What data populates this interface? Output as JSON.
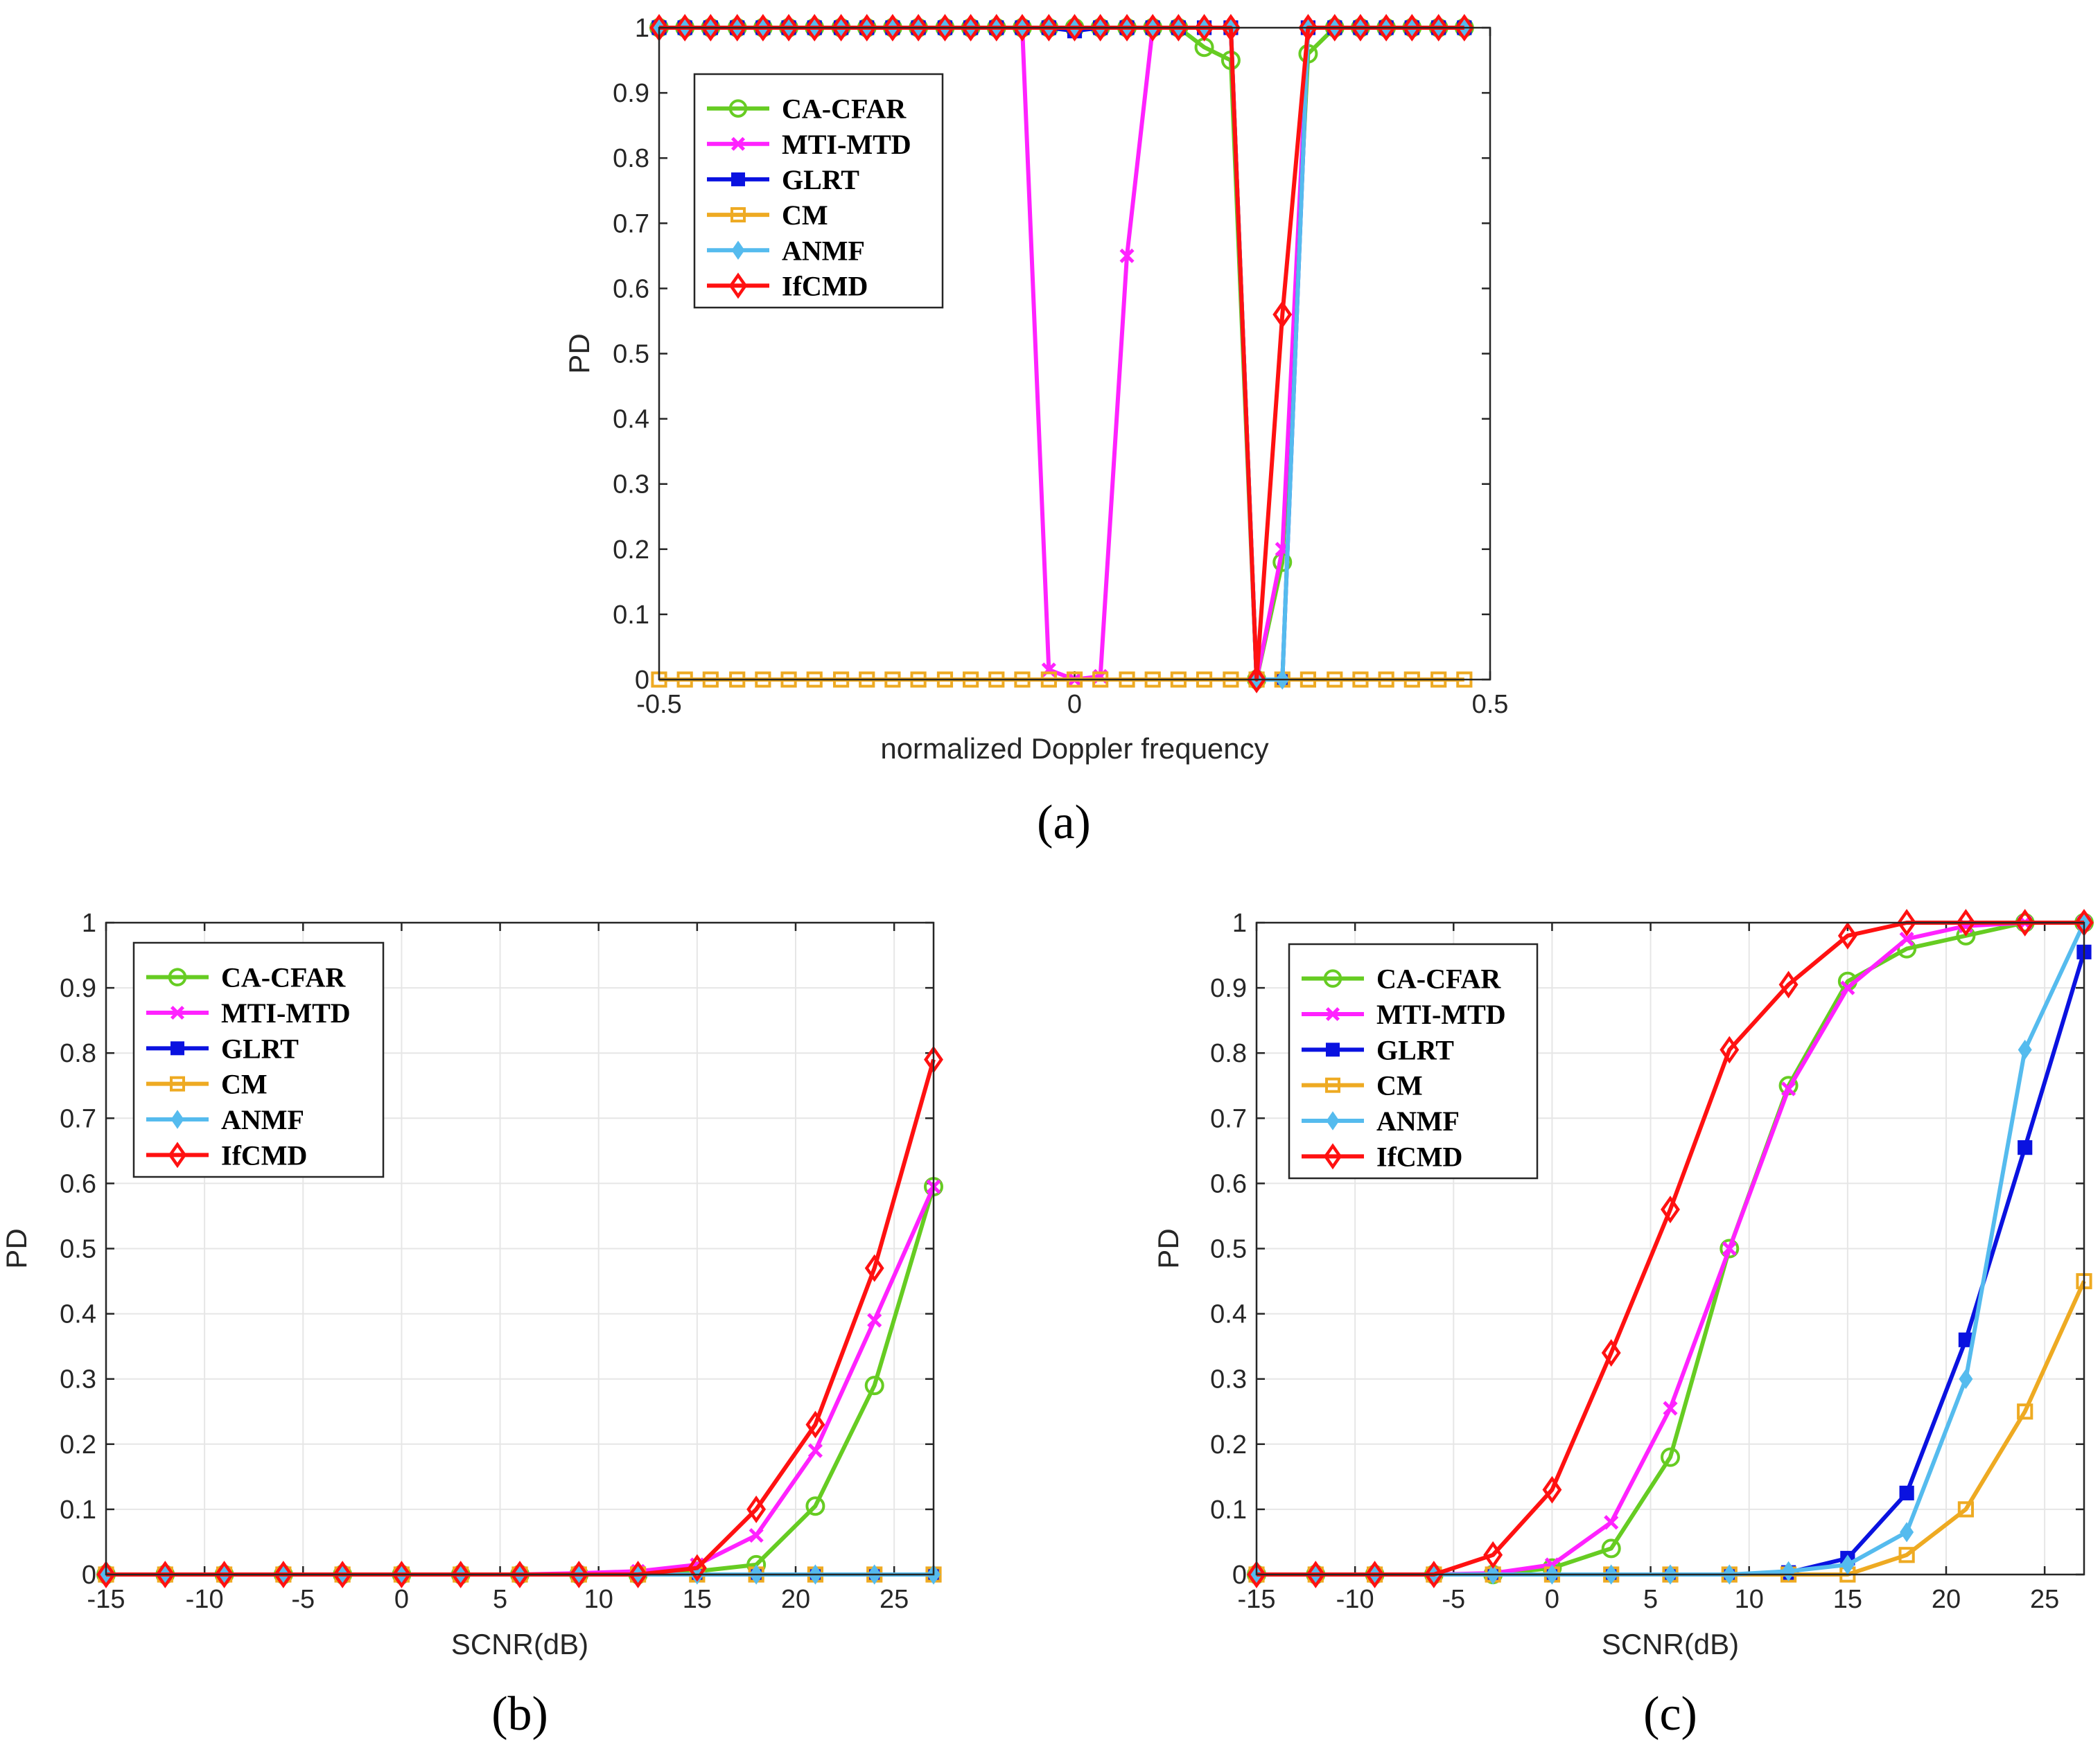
{
  "colors": {
    "CA-CFAR": "#66cc22",
    "MTI-MTD": "#ff22ff",
    "GLRT": "#0a12e0",
    "CM": "#eeaa22",
    "ANMF": "#55bbee",
    "IfCMD": "#ff1111"
  },
  "markers": {
    "CA-CFAR": "circle",
    "MTI-MTD": "x",
    "GLRT": "square",
    "CM": "square-open",
    "ANMF": "diamond-small",
    "IfCMD": "diamond"
  },
  "chart_data": [
    {
      "type": "line",
      "panel": "(a)",
      "caption": "(a)",
      "xlabel": "normalized Doppler frequency",
      "ylabel": "PD",
      "xlim": [
        -0.5,
        0.5
      ],
      "ylim": [
        0,
        1
      ],
      "xticks": [
        -0.5,
        0,
        0.5
      ],
      "xtick_labels": [
        "-0.5",
        "0",
        "0.5"
      ],
      "yticks": [
        0,
        0.1,
        0.2,
        0.3,
        0.4,
        0.5,
        0.6,
        0.7,
        0.8,
        0.9,
        1
      ],
      "ytick_labels": [
        "0",
        "0.1",
        "0.2",
        "0.3",
        "0.4",
        "0.5",
        "0.6",
        "0.7",
        "0.8",
        "0.9",
        "1"
      ],
      "grid": false,
      "legend_position": "top-left",
      "x": [
        -0.5,
        -0.469,
        -0.438,
        -0.406,
        -0.375,
        -0.344,
        -0.313,
        -0.281,
        -0.25,
        -0.219,
        -0.188,
        -0.156,
        -0.125,
        -0.094,
        -0.063,
        -0.031,
        0,
        0.031,
        0.063,
        0.094,
        0.125,
        0.156,
        0.188,
        0.219,
        0.25,
        0.281,
        0.313,
        0.344,
        0.375,
        0.406,
        0.438,
        0.469
      ],
      "series": [
        {
          "name": "CA-CFAR",
          "values": [
            1,
            1,
            1,
            1,
            1,
            1,
            1,
            1,
            1,
            1,
            1,
            1,
            1,
            1,
            1,
            1,
            1,
            1,
            1,
            1,
            1,
            0.97,
            0.95,
            0,
            0.18,
            0.96,
            1,
            1,
            1,
            1,
            1,
            1
          ]
        },
        {
          "name": "MTI-MTD",
          "values": [
            1,
            1,
            1,
            1,
            1,
            1,
            1,
            1,
            1,
            1,
            1,
            1,
            1,
            1,
            1,
            0.015,
            0,
            0.005,
            0.65,
            1,
            1,
            1,
            1,
            0,
            0.2,
            1,
            1,
            1,
            1,
            1,
            1,
            1
          ]
        },
        {
          "name": "GLRT",
          "values": [
            1,
            1,
            1,
            1,
            1,
            1,
            1,
            1,
            1,
            1,
            1,
            1,
            1,
            1,
            1,
            1,
            0.995,
            1,
            1,
            1,
            1,
            1,
            1,
            0,
            0,
            1,
            1,
            1,
            1,
            1,
            1,
            1
          ]
        },
        {
          "name": "CM",
          "values": [
            0,
            0,
            0,
            0,
            0,
            0,
            0,
            0,
            0,
            0,
            0,
            0,
            0,
            0,
            0,
            0,
            0,
            0,
            0,
            0,
            0,
            0,
            0,
            0,
            0,
            0,
            0,
            0,
            0,
            0,
            0,
            0
          ]
        },
        {
          "name": "ANMF",
          "values": [
            1,
            1,
            1,
            1,
            1,
            1,
            1,
            1,
            1,
            1,
            1,
            1,
            1,
            1,
            1,
            1,
            1,
            1,
            1,
            1,
            1,
            1,
            1,
            0,
            0,
            1,
            1,
            1,
            1,
            1,
            1,
            1
          ]
        },
        {
          "name": "IfCMD",
          "values": [
            1,
            1,
            1,
            1,
            1,
            1,
            1,
            1,
            1,
            1,
            1,
            1,
            1,
            1,
            1,
            1,
            1,
            1,
            1,
            1,
            1,
            1,
            1,
            0,
            0.56,
            1,
            1,
            1,
            1,
            1,
            1,
            1
          ]
        }
      ]
    },
    {
      "type": "line",
      "panel": "(b)",
      "caption": "(b)",
      "xlabel": "SCNR(dB)",
      "ylabel": "PD",
      "xlim": [
        -15,
        27
      ],
      "ylim": [
        0,
        1
      ],
      "xticks": [
        -15,
        -10,
        -5,
        0,
        5,
        10,
        15,
        20,
        25
      ],
      "xtick_labels": [
        "-15",
        "-10",
        "-5",
        "0",
        "5",
        "10",
        "15",
        "20",
        "25"
      ],
      "yticks": [
        0,
        0.1,
        0.2,
        0.3,
        0.4,
        0.5,
        0.6,
        0.7,
        0.8,
        0.9,
        1
      ],
      "ytick_labels": [
        "0",
        "0.1",
        "0.2",
        "0.3",
        "0.4",
        "0.5",
        "0.6",
        "0.7",
        "0.8",
        "0.9",
        "1"
      ],
      "grid": true,
      "legend_position": "top-left",
      "x": [
        -15,
        -12,
        -9,
        -6,
        -3,
        0,
        3,
        6,
        9,
        12,
        15,
        18,
        21,
        24,
        27
      ],
      "series": [
        {
          "name": "CA-CFAR",
          "values": [
            0,
            0,
            0,
            0,
            0,
            0,
            0,
            0,
            0,
            0,
            0.005,
            0.015,
            0.105,
            0.29,
            0.595
          ]
        },
        {
          "name": "MTI-MTD",
          "values": [
            0,
            0,
            0,
            0,
            0,
            0,
            0,
            0,
            0.002,
            0.005,
            0.015,
            0.06,
            0.19,
            0.39,
            0.595
          ]
        },
        {
          "name": "GLRT",
          "values": [
            0,
            0,
            0,
            0,
            0,
            0,
            0,
            0,
            0,
            0,
            0,
            0,
            0,
            0,
            0
          ]
        },
        {
          "name": "CM",
          "values": [
            0,
            0,
            0,
            0,
            0,
            0,
            0,
            0,
            0,
            0,
            0,
            0,
            0,
            0,
            0
          ]
        },
        {
          "name": "ANMF",
          "values": [
            0,
            0,
            0,
            0,
            0,
            0,
            0,
            0,
            0,
            0,
            0,
            0,
            0,
            0,
            0
          ]
        },
        {
          "name": "IfCMD",
          "values": [
            0,
            0,
            0,
            0,
            0,
            0,
            0,
            0,
            0,
            0,
            0.01,
            0.1,
            0.23,
            0.47,
            0.79
          ]
        }
      ]
    },
    {
      "type": "line",
      "panel": "(c)",
      "caption": "(c)",
      "xlabel": "SCNR(dB)",
      "ylabel": "PD",
      "xlim": [
        -15,
        27
      ],
      "ylim": [
        0,
        1
      ],
      "xticks": [
        -15,
        -10,
        -5,
        0,
        5,
        10,
        15,
        20,
        25
      ],
      "xtick_labels": [
        "-15",
        "-10",
        "-5",
        "0",
        "5",
        "10",
        "15",
        "20",
        "25"
      ],
      "yticks": [
        0,
        0.1,
        0.2,
        0.3,
        0.4,
        0.5,
        0.6,
        0.7,
        0.8,
        0.9,
        1
      ],
      "ytick_labels": [
        "0",
        "0.1",
        "0.2",
        "0.3",
        "0.4",
        "0.5",
        "0.6",
        "0.7",
        "0.8",
        "0.9",
        "1"
      ],
      "grid": true,
      "legend_position": "top-left",
      "x": [
        -15,
        -12,
        -9,
        -6,
        -3,
        0,
        3,
        6,
        9,
        12,
        15,
        18,
        21,
        24,
        27
      ],
      "series": [
        {
          "name": "CA-CFAR",
          "values": [
            0,
            0,
            0,
            0,
            0,
            0.01,
            0.04,
            0.18,
            0.5,
            0.75,
            0.91,
            0.96,
            0.98,
            1,
            1
          ]
        },
        {
          "name": "MTI-MTD",
          "values": [
            0,
            0,
            0,
            0,
            0.002,
            0.015,
            0.08,
            0.255,
            0.5,
            0.745,
            0.9,
            0.975,
            0.995,
            1,
            1
          ]
        },
        {
          "name": "GLRT",
          "values": [
            0,
            0,
            0,
            0,
            0,
            0,
            0,
            0,
            0,
            0.003,
            0.025,
            0.125,
            0.36,
            0.655,
            0.955
          ]
        },
        {
          "name": "CM",
          "values": [
            0,
            0,
            0,
            0,
            0,
            0,
            0,
            0,
            0,
            0,
            0,
            0.03,
            0.1,
            0.25,
            0.45
          ]
        },
        {
          "name": "ANMF",
          "values": [
            0,
            0,
            0,
            0,
            0,
            0,
            0,
            0,
            0,
            0.005,
            0.015,
            0.065,
            0.3,
            0.805,
            1
          ]
        },
        {
          "name": "IfCMD",
          "values": [
            0,
            0,
            0,
            0,
            0.03,
            0.13,
            0.34,
            0.56,
            0.805,
            0.905,
            0.98,
            1,
            1,
            1,
            1
          ]
        }
      ]
    }
  ]
}
